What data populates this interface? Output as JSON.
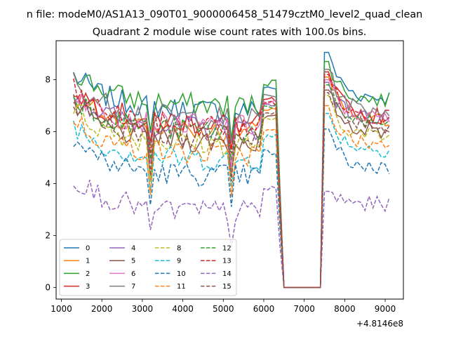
{
  "suptitle": "n file: modeM0/AS1A13_090T01_9000006458_51479cztM0_level2_quad_clean",
  "chart_data": {
    "type": "line",
    "title": "Quadrant 2 module wise count rates with 100.0s bins.",
    "xlabel": "",
    "ylabel": "",
    "x_offset_label": "+4.8146e8",
    "xlim": [
      870,
      9450
    ],
    "ylim": [
      -0.45,
      9.5
    ],
    "xticks": [
      1000,
      2000,
      3000,
      4000,
      5000,
      6000,
      7000,
      8000,
      9000
    ],
    "yticks": [
      0,
      2,
      4,
      6,
      8
    ],
    "grid": false,
    "legend": {
      "placement": "lower-left",
      "ncol": 4
    },
    "series": [
      {
        "name": "0",
        "color": "#1f77b4",
        "dash": "solid",
        "active": 6.8,
        "spike": 9.05,
        "late": 7.3
      },
      {
        "name": "1",
        "color": "#ff7f0e",
        "dash": "solid",
        "active": 6.0,
        "spike": 8.1,
        "late": 6.4
      },
      {
        "name": "2",
        "color": "#2ca02c",
        "dash": "solid",
        "active": 7.0,
        "spike": 8.7,
        "late": 7.2
      },
      {
        "name": "3",
        "color": "#d62728",
        "dash": "solid",
        "active": 6.3,
        "spike": 8.3,
        "late": 6.6
      },
      {
        "name": "4",
        "color": "#9467bd",
        "dash": "solid",
        "active": 6.1,
        "spike": 7.9,
        "late": 6.5
      },
      {
        "name": "5",
        "color": "#8c564b",
        "dash": "solid",
        "active": 5.6,
        "spike": 7.6,
        "late": 6.0
      },
      {
        "name": "6",
        "color": "#e377c2",
        "dash": "solid",
        "active": 6.2,
        "spike": 8.0,
        "late": 6.5
      },
      {
        "name": "7",
        "color": "#7f7f7f",
        "dash": "solid",
        "active": 6.5,
        "spike": 8.4,
        "late": 6.8
      },
      {
        "name": "8",
        "color": "#bcbd22",
        "dash": "dashed",
        "active": 5.5,
        "spike": 7.4,
        "late": 5.8
      },
      {
        "name": "9",
        "color": "#17becf",
        "dash": "dashed",
        "active": 4.9,
        "spike": 6.7,
        "late": 5.3
      },
      {
        "name": "10",
        "color": "#1f77b4",
        "dash": "dashed",
        "active": 4.3,
        "spike": 6.1,
        "late": 4.6
      },
      {
        "name": "11",
        "color": "#ff7f0e",
        "dash": "dashed",
        "active": 5.1,
        "spike": 7.0,
        "late": 5.5
      },
      {
        "name": "12",
        "color": "#2ca02c",
        "dash": "dashed",
        "active": 6.0,
        "spike": 7.8,
        "late": 6.3
      },
      {
        "name": "13",
        "color": "#d62728",
        "dash": "dashed",
        "active": 6.2,
        "spike": 8.2,
        "late": 6.5
      },
      {
        "name": "14",
        "color": "#9467bd",
        "dash": "dashed",
        "active": 2.9,
        "spike": 3.7,
        "late": 3.2
      },
      {
        "name": "15",
        "color": "#8c564b",
        "dash": "dashed",
        "active": 5.8,
        "spike": 7.5,
        "late": 6.2
      }
    ],
    "x_start": 1300,
    "x_end": 9100,
    "x_step": 100,
    "gap_start": 6500,
    "gap_end": 7400
  }
}
